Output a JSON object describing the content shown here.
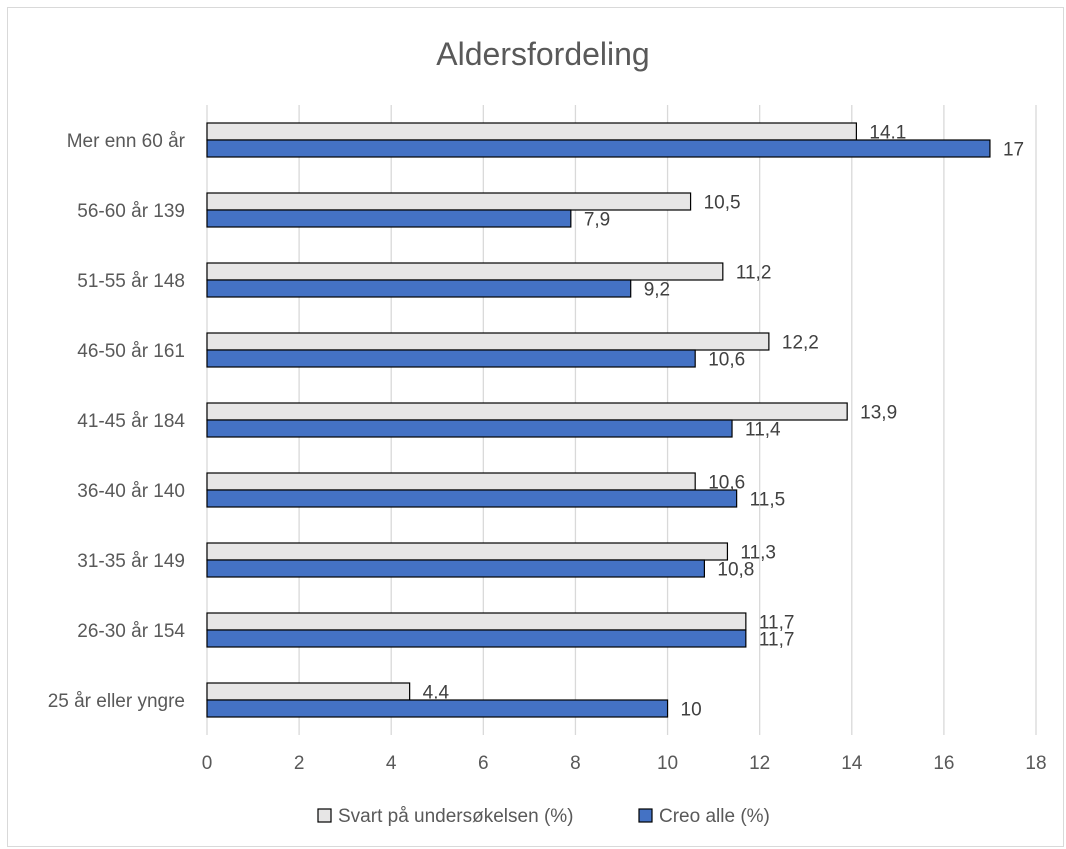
{
  "chart_data": {
    "type": "bar",
    "orientation": "horizontal",
    "title": "Aldersfordeling",
    "categories": [
      "Mer enn 60 år",
      "56-60 år 139",
      "51-55 år 148",
      "46-50 år 161",
      "41-45 år 184",
      "36-40 år 140",
      "31-35 år 149",
      "26-30 år 154",
      "25 år eller yngre"
    ],
    "series": [
      {
        "name": "Svart på undersøkelsen (%)",
        "color": "#e7e6e6",
        "values": [
          14.1,
          10.5,
          11.2,
          12.2,
          13.9,
          10.6,
          11.3,
          11.7,
          4.4
        ],
        "labels": [
          "14.1",
          "10,5",
          "11,2",
          "12,2",
          "13,9",
          "10,6",
          "11,3",
          "11,7",
          "4.4"
        ]
      },
      {
        "name": "Creo alle (%)",
        "color": "#4472c4",
        "values": [
          17,
          7.9,
          9.2,
          10.6,
          11.4,
          11.5,
          10.8,
          11.7,
          10
        ],
        "labels": [
          "17",
          "7,9",
          "9,2",
          "10,6",
          "11,4",
          "11,5",
          "10,8",
          "11,7",
          "10"
        ]
      }
    ],
    "xlim": [
      0,
      18
    ],
    "xticks": [
      0,
      2,
      4,
      6,
      8,
      10,
      12,
      14,
      16,
      18
    ],
    "grid": true,
    "legend": "bottom",
    "gridline_color": "#d9d9d9",
    "text_color": "#595959"
  }
}
